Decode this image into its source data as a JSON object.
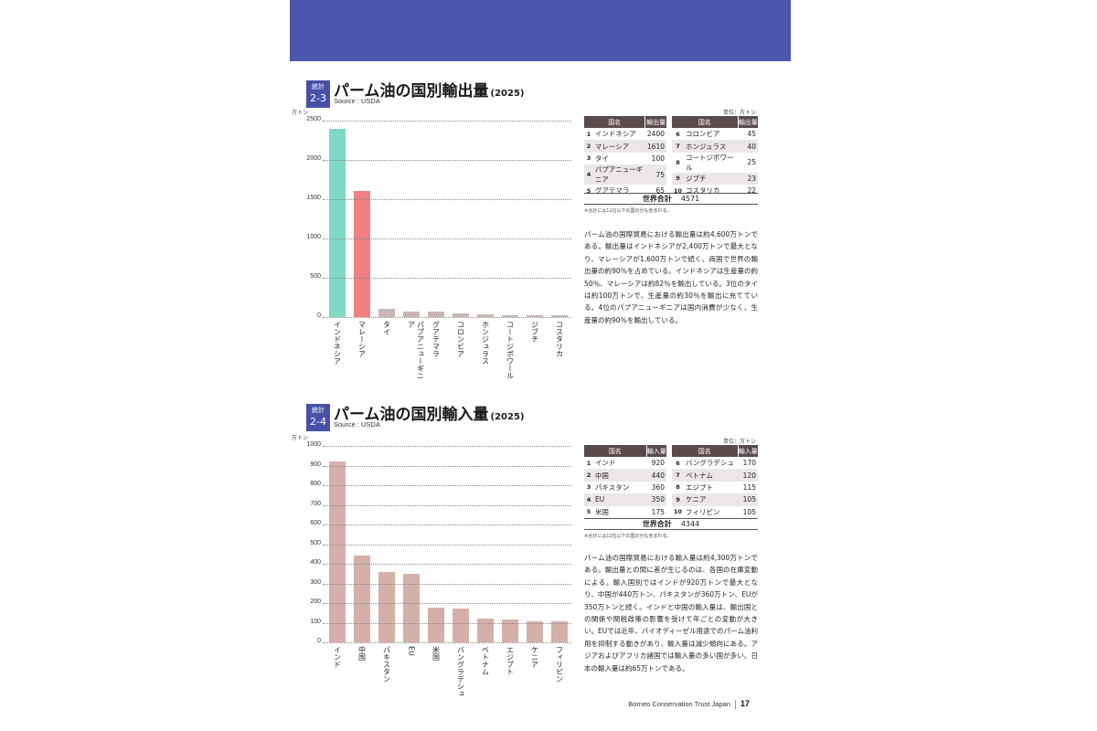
{
  "banner": {
    "color": "#4a57ad"
  },
  "sections": [
    {
      "badge": {
        "line1": "統計",
        "line2": "2-3"
      },
      "title": "パーム油の国別輸出量",
      "year": "(2025)",
      "source": "Source : USDA",
      "unit_axis": "万トン",
      "unit_table": "単位：万トン",
      "table": {
        "headers": {
          "name": "国名",
          "value": "輸出量"
        },
        "left": [
          {
            "rank": "1",
            "name": "インドネシア",
            "value": "2400"
          },
          {
            "rank": "2",
            "name": "マレーシア",
            "value": "1610"
          },
          {
            "rank": "3",
            "name": "タイ",
            "value": "100"
          },
          {
            "rank": "4",
            "name": "パプアニューギニア",
            "value": "75"
          },
          {
            "rank": "5",
            "name": "グアテマラ",
            "value": "65"
          }
        ],
        "right": [
          {
            "rank": "6",
            "name": "コロンビア",
            "value": "45"
          },
          {
            "rank": "7",
            "name": "ホンジュラス",
            "value": "40"
          },
          {
            "rank": "8",
            "name": "コートジボワール",
            "value": "25"
          },
          {
            "rank": "9",
            "name": "ジブチ",
            "value": "23"
          },
          {
            "rank": "10",
            "name": "コスタリカ",
            "value": "22"
          }
        ],
        "total_label": "世界合計",
        "total_value": "4571",
        "footnote": "※合計には11位以下の国の分も含まれる。"
      },
      "body": "パーム油の国際貿易における輸出量は約4,600万トンである。輸出量はインドネシアが2,400万トンで最大となり、マレーシアが1,600万トンで続く。両国で世界の輸出量の約90％を占めている。インドネシアは生産量の約50％、マレーシアは約82％を輸出している。3位のタイは約100万トンで、生産量の約30％を輸出に充てている。4位のパプアニューギニアは国内消費が少なく、生産量の約90％を輸出している。"
    },
    {
      "badge": {
        "line1": "統計",
        "line2": "2-4"
      },
      "title": "パーム油の国別輸入量",
      "year": "(2025)",
      "source": "Source : USDA",
      "unit_axis": "万トン",
      "unit_table": "単位：万トン",
      "table": {
        "headers": {
          "name": "国名",
          "value": "輸入量"
        },
        "left": [
          {
            "rank": "1",
            "name": "インド",
            "value": "920"
          },
          {
            "rank": "2",
            "name": "中国",
            "value": "440"
          },
          {
            "rank": "3",
            "name": "パキスタン",
            "value": "360"
          },
          {
            "rank": "4",
            "name": "EU",
            "value": "350"
          },
          {
            "rank": "5",
            "name": "米国",
            "value": "175"
          }
        ],
        "right": [
          {
            "rank": "6",
            "name": "バングラデシュ",
            "value": "170"
          },
          {
            "rank": "7",
            "name": "ベトナム",
            "value": "120"
          },
          {
            "rank": "8",
            "name": "エジプト",
            "value": "115"
          },
          {
            "rank": "9",
            "name": "ケニア",
            "value": "105"
          },
          {
            "rank": "10",
            "name": "フィリピン",
            "value": "105"
          }
        ],
        "total_label": "世界合計",
        "total_value": "4344",
        "footnote": "※合計には11位以下の国の分も含まれる。"
      },
      "body": "パーム油の国際貿易における輸入量は約4,300万トンである。輸出量との間に差が生じるのは、各国の在庫変動による。輸入国別ではインドが920万トンで最大となり、中国が440万トン、パキスタンが360万トン、EUが350万トンと続く。インドと中国の輸入量は、輸出国との関係や関税政策の影響を受けて年ごとの変動が大きい。EUでは近年、バイオディーゼル用途でのパーム油利用を抑制する動きがあり、輸入量は減少傾向にある。アジアおよびアフリカ諸国では輸入量の多い国が多い。日本の輸入量は約65万トンである。"
    }
  ],
  "footer": {
    "org": "Borneo Conservation Trust Japan",
    "page": "17"
  },
  "chart_data": [
    {
      "type": "bar",
      "title": "パーム油の国別輸出量 (2025)",
      "subtitle": "Source : USDA",
      "xlabel": "",
      "ylabel": "万トン",
      "ylim": [
        0,
        2500
      ],
      "yticks": [
        0,
        500,
        1000,
        1500,
        2000,
        2500
      ],
      "grid": true,
      "categories": [
        "インドネシア",
        "マレーシア",
        "タイ",
        "パプアニューギニア",
        "グアテマラ",
        "コロンビア",
        "ホンジュラス",
        "コートジボワール",
        "ジブチ",
        "コスタリカ"
      ],
      "values": [
        2400,
        1610,
        100,
        75,
        65,
        45,
        40,
        25,
        23,
        22
      ],
      "colors": [
        "#7fd9c6",
        "#f27f82",
        "#c9b6b3",
        "#c9b6b3",
        "#c9b6b3",
        "#c9b6b3",
        "#c9b6b3",
        "#c9b6b3",
        "#c9b6b3",
        "#c9b6b3"
      ]
    },
    {
      "type": "bar",
      "title": "パーム油の国別輸入量 (2025)",
      "subtitle": "Source : USDA",
      "xlabel": "",
      "ylabel": "万トン",
      "ylim": [
        0,
        1000
      ],
      "yticks": [
        0,
        100,
        200,
        300,
        400,
        500,
        600,
        700,
        800,
        900,
        1000
      ],
      "grid": true,
      "categories": [
        "インド",
        "中国",
        "パキスタン",
        "EU",
        "米国",
        "バングラデシュ",
        "ベトナム",
        "エジプト",
        "ケニア",
        "フィリピン"
      ],
      "values": [
        920,
        440,
        360,
        350,
        175,
        170,
        120,
        115,
        105,
        105
      ],
      "colors": [
        "#d4b0a8"
      ]
    }
  ]
}
